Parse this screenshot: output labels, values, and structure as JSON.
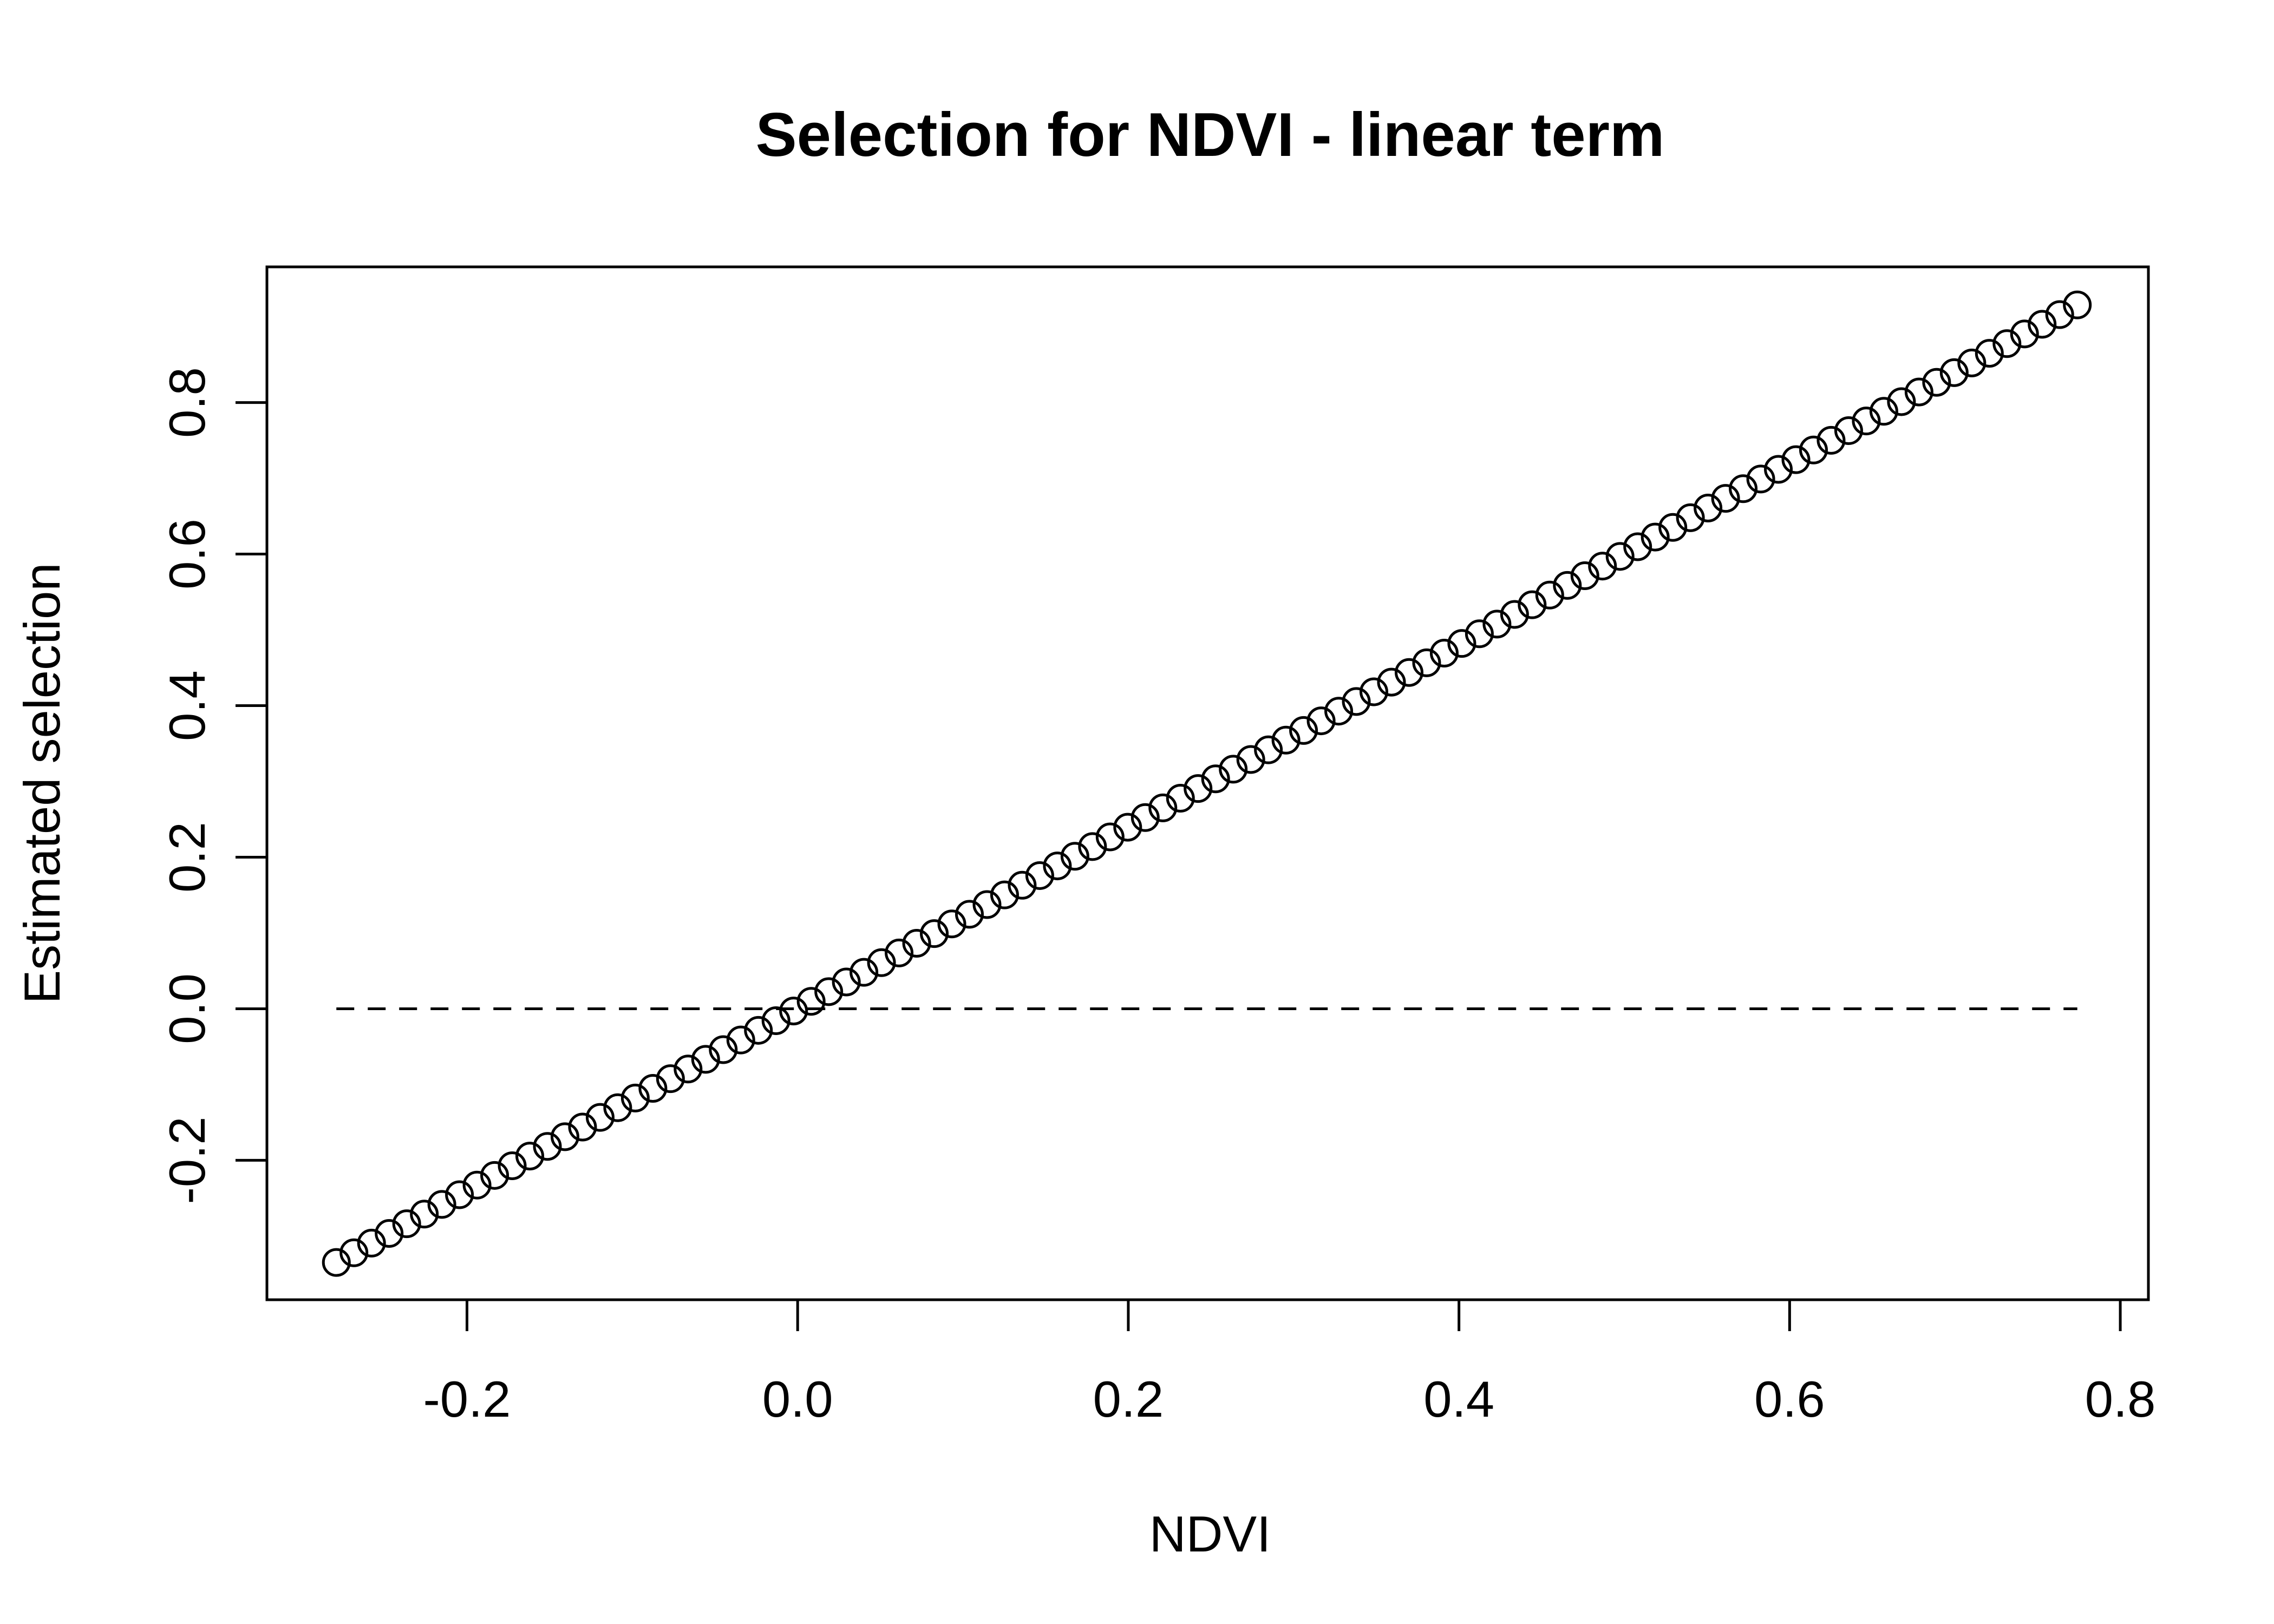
{
  "chart_data": {
    "type": "scatter",
    "title": "Selection for NDVI - linear term",
    "xlabel": "NDVI",
    "ylabel": "Estimated selection",
    "x_range": [
      -0.279,
      0.774
    ],
    "n_points": 100,
    "slope": 1.2,
    "intercept": 0.0,
    "xlim": [
      -0.321,
      0.817
    ],
    "ylim": [
      -0.384,
      0.979
    ],
    "x_ticks": [
      -0.2,
      0.0,
      0.2,
      0.4,
      0.6,
      0.8
    ],
    "x_tick_labels": [
      "-0.2",
      "0.0",
      "0.2",
      "0.4",
      "0.6",
      "0.8"
    ],
    "y_ticks": [
      -0.2,
      0.0,
      0.2,
      0.4,
      0.6,
      0.8
    ],
    "y_tick_labels": [
      "-0.2",
      "0.0",
      "0.2",
      "0.4",
      "0.6",
      "0.8"
    ],
    "reference_line": {
      "y": 0.0,
      "x_from": -0.279,
      "x_to": 0.774,
      "style": "dashed"
    },
    "marker": "open-circle",
    "grid": false,
    "colors": {
      "stroke": "#000000",
      "background": "#ffffff"
    }
  }
}
